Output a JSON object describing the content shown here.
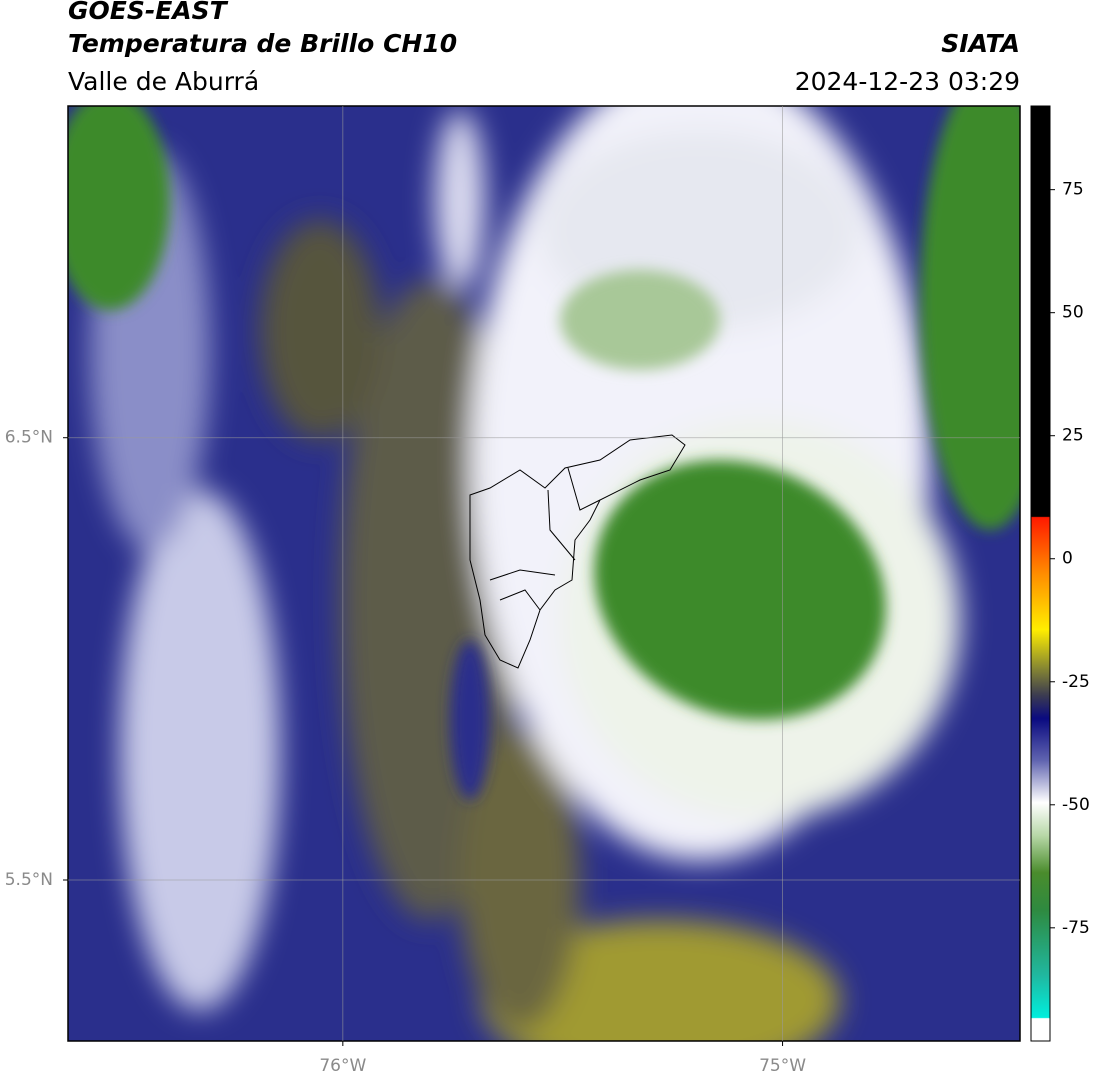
{
  "header": {
    "title": "GOES-EAST",
    "subtitle": "Temperatura de Brillo CH10",
    "region": "Valle de Aburrá",
    "source": "SIATA",
    "datetime": "2024-12-23 03:29"
  },
  "map": {
    "xlim": [
      -76.625,
      -74.46
    ],
    "ylim": [
      5.136,
      7.25
    ],
    "xticks": [
      {
        "value": -76,
        "label": "76°W"
      },
      {
        "value": -75,
        "label": "75°W"
      }
    ],
    "yticks": [
      {
        "value": 6.5,
        "label": "6.5°N"
      },
      {
        "value": 5.5,
        "label": "5.5°N"
      }
    ]
  },
  "colorbar": {
    "lim": [
      -98,
      92
    ],
    "ticks": [
      75,
      50,
      25,
      0,
      -25,
      -50,
      -75
    ]
  }
}
